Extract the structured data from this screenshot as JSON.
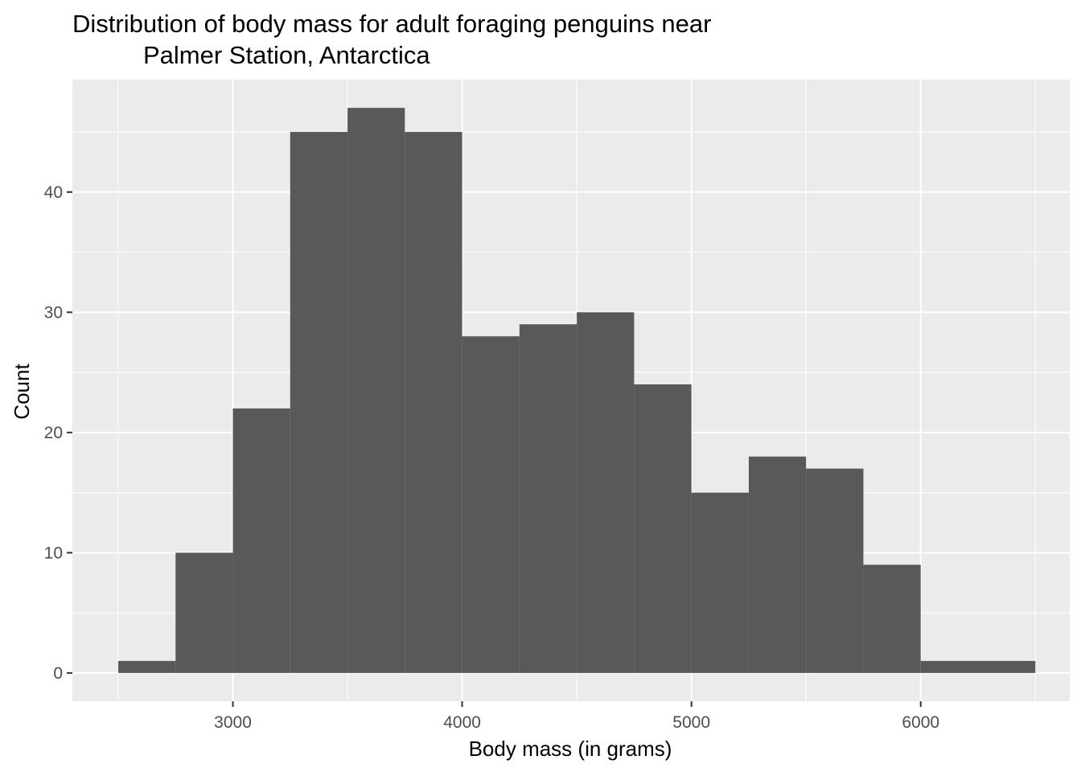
{
  "chart_data": {
    "type": "bar",
    "title_line1": "Distribution of body mass for adult foraging penguins near",
    "title_line2": "Palmer Station, Antarctica",
    "xlabel": "Body mass (in grams)",
    "ylabel": "Count",
    "bin_width": 250,
    "bins": [
      {
        "x0": 2500,
        "x1": 2750,
        "count": 1
      },
      {
        "x0": 2750,
        "x1": 3000,
        "count": 10
      },
      {
        "x0": 3000,
        "x1": 3250,
        "count": 22
      },
      {
        "x0": 3250,
        "x1": 3500,
        "count": 45
      },
      {
        "x0": 3500,
        "x1": 3750,
        "count": 47
      },
      {
        "x0": 3750,
        "x1": 4000,
        "count": 45
      },
      {
        "x0": 4000,
        "x1": 4250,
        "count": 28
      },
      {
        "x0": 4250,
        "x1": 4500,
        "count": 29
      },
      {
        "x0": 4500,
        "x1": 4750,
        "count": 30
      },
      {
        "x0": 4750,
        "x1": 5000,
        "count": 24
      },
      {
        "x0": 5000,
        "x1": 5250,
        "count": 15
      },
      {
        "x0": 5250,
        "x1": 5500,
        "count": 18
      },
      {
        "x0": 5500,
        "x1": 5750,
        "count": 17
      },
      {
        "x0": 5750,
        "x1": 6000,
        "count": 9
      },
      {
        "x0": 6000,
        "x1": 6250,
        "count": 1
      },
      {
        "x0": 6250,
        "x1": 6500,
        "count": 1
      }
    ],
    "xlim": [
      2300,
      6650
    ],
    "ylim": [
      -2.35,
      49.35
    ],
    "x_major_ticks": [
      3000,
      4000,
      5000,
      6000
    ],
    "x_minor_ticks": [
      2500,
      3500,
      4500,
      5500,
      6500
    ],
    "y_major_ticks": [
      0,
      10,
      20,
      30,
      40
    ],
    "y_minor_ticks": [
      5,
      15,
      25,
      35,
      45
    ],
    "grid": true,
    "colors": {
      "panel_background": "#ebebeb",
      "grid_line": "#ffffff",
      "bar_fill": "#595959",
      "tick_text": "#4d4d4d",
      "tick_mark": "#333333"
    }
  }
}
